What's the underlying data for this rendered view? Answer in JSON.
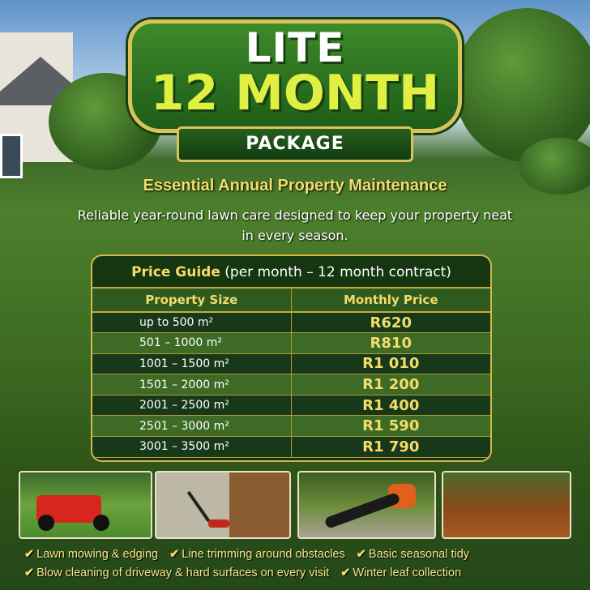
{
  "badge": {
    "line1": "LITE",
    "line2": "12 MONTH",
    "ribbon": "PACKAGE"
  },
  "subtitle": "Essential Annual Property Maintenance",
  "description": "Reliable year-round lawn care designed to keep your property neat in every season.",
  "price_guide": {
    "title": "Price Guide",
    "title_note": "(per month – 12 month contract)",
    "columns": [
      "Property Size",
      "Monthly Price"
    ],
    "rows": [
      {
        "size": "up to 500 m²",
        "price": "R620"
      },
      {
        "size": "501 – 1000 m²",
        "price": "R810"
      },
      {
        "size": "1001 – 1500 m²",
        "price": "R1 010"
      },
      {
        "size": "1501 – 2000 m²",
        "price": "R1 200"
      },
      {
        "size": "2001 – 2500 m²",
        "price": "R1 400"
      },
      {
        "size": "2501 – 3000 m²",
        "price": "R1 590"
      },
      {
        "size": "3001 – 3500 m²",
        "price": "R1 790"
      }
    ]
  },
  "features": [
    "Lawn mowing & edging",
    "Line trimming around obstacles",
    "Basic seasonal tidy",
    "Blow cleaning of driveway & hard surfaces on every visit",
    "Winter leaf collection"
  ],
  "colors": {
    "gold": "#f3dc6a",
    "green": "#1e5c18"
  }
}
